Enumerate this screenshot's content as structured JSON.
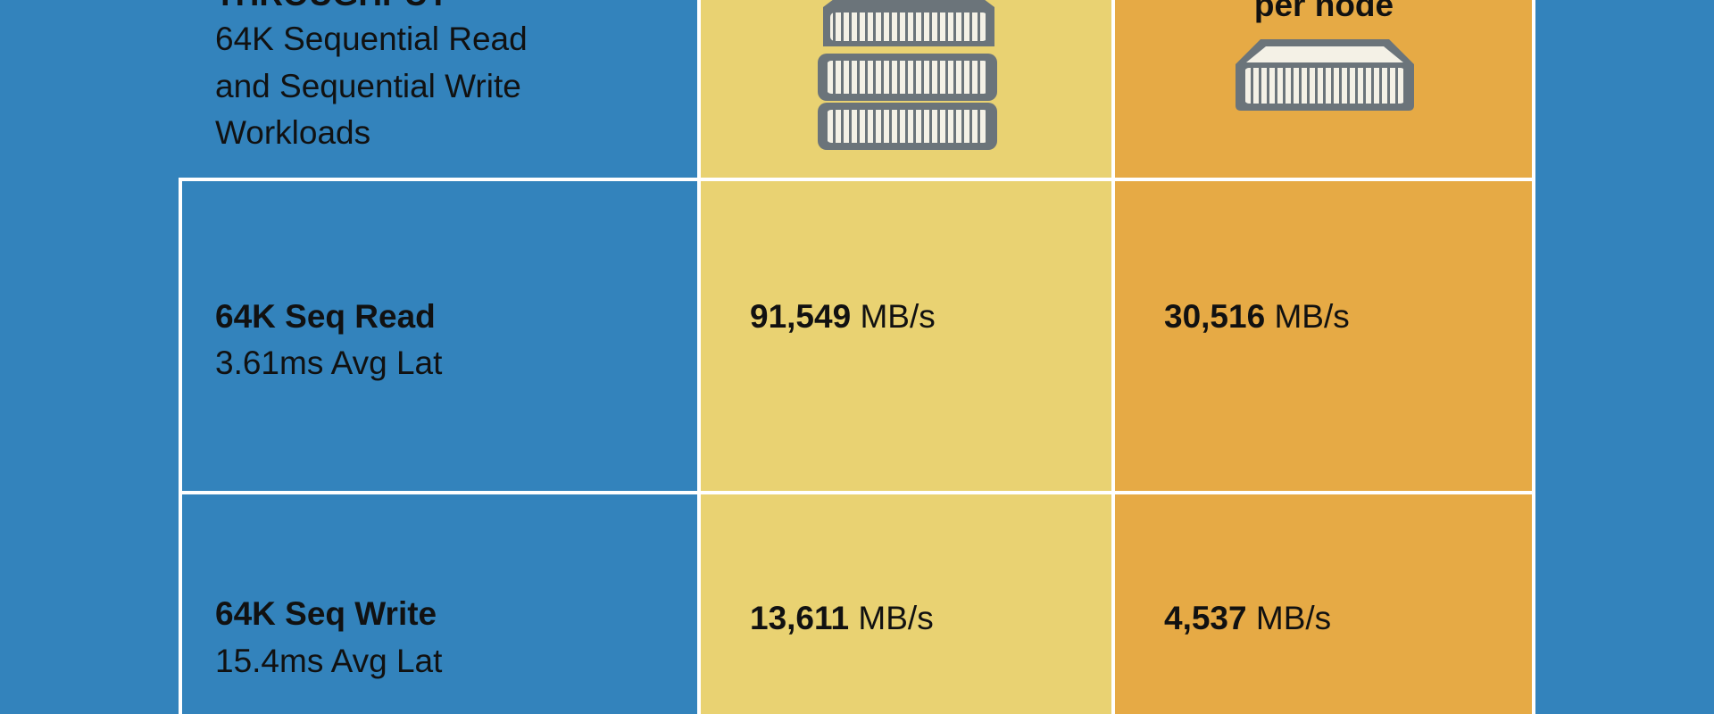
{
  "header": {
    "title": "THROUGHPUT",
    "description": [
      "64K Sequential Read",
      "and Sequential Write",
      "Workloads"
    ],
    "column_2_label": "per node"
  },
  "rows": [
    {
      "label": "64K Seq Read",
      "latency": "3.61ms Avg Lat",
      "cluster_value": "91,549",
      "cluster_unit": "MB/s",
      "node_value": "30,516",
      "node_unit": "MB/s"
    },
    {
      "label": "64K Seq Write",
      "latency": "15.4ms Avg Lat",
      "cluster_value": "13,611",
      "cluster_unit": "MB/s",
      "node_value": "4,537",
      "node_unit": "MB/s"
    }
  ]
}
